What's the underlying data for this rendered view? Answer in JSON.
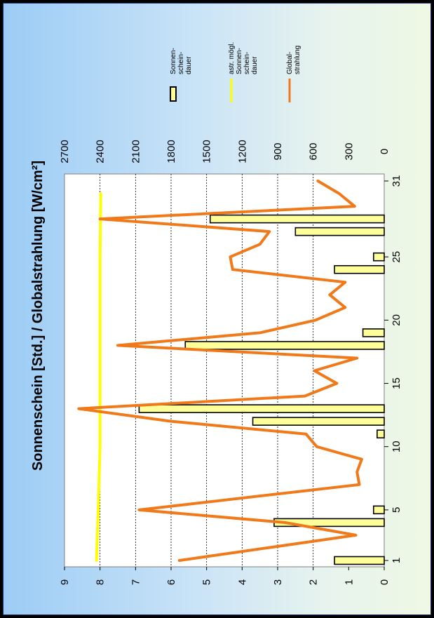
{
  "chart_data": {
    "type": "bar+line",
    "title": "Sonnenschein [Std.] / Globalstrahlung [W/cm²]",
    "orientation": "rotated 90° counter-clockwise",
    "x": {
      "ticks": [
        1,
        5,
        10,
        15,
        20,
        25,
        31
      ],
      "range": [
        1,
        31
      ]
    },
    "y_left": {
      "ticks": [
        "0",
        "1",
        "2",
        "3",
        "4",
        "5",
        "6",
        "7",
        "8",
        "9"
      ],
      "range": [
        0,
        9
      ]
    },
    "y_right": {
      "ticks": [
        "0",
        "300",
        "600",
        "900",
        "1200",
        "1500",
        "1800",
        "2100",
        "2400",
        "2700"
      ],
      "range": [
        0,
        2700
      ]
    },
    "grid": "horizontal dotted at left-axis integers 2–8",
    "legend_position": "right",
    "series": [
      {
        "name": "Sonnen-\nschein-\ndauer",
        "type": "bar",
        "axis": "left",
        "color": "#ffff99",
        "x": [
          1,
          4,
          5,
          11,
          12,
          13,
          18,
          19,
          24,
          25,
          27,
          28
        ],
        "values": [
          1.4,
          3.1,
          0.3,
          0.2,
          3.7,
          6.9,
          5.6,
          0.6,
          1.4,
          0.3,
          2.5,
          4.9
        ]
      },
      {
        "name": "astr. mögl.\nSonnen-\nschein-\ndauer",
        "type": "line",
        "axis": "left",
        "color": "#ffff00",
        "x": [
          1,
          5,
          10,
          15,
          20,
          25,
          30
        ],
        "values": [
          8.1,
          8.05,
          8.0,
          8.0,
          8.0,
          8.0,
          7.98
        ]
      },
      {
        "name": "Global-\nstrahlung",
        "type": "line",
        "axis": "right",
        "color": "#f07a1a",
        "x": [
          1,
          3,
          4,
          5,
          7,
          8,
          9,
          10,
          11,
          12,
          13,
          14,
          15,
          16,
          17,
          18,
          19,
          20,
          21,
          22,
          23,
          24,
          25,
          26,
          27,
          28,
          29,
          30,
          31
        ],
        "values": [
          1730,
          240,
          840,
          2070,
          210,
          230,
          190,
          570,
          660,
          1800,
          2580,
          670,
          400,
          590,
          230,
          2250,
          1050,
          580,
          330,
          460,
          330,
          1280,
          1300,
          1050,
          970,
          2400,
          250,
          380,
          560
        ]
      }
    ]
  }
}
